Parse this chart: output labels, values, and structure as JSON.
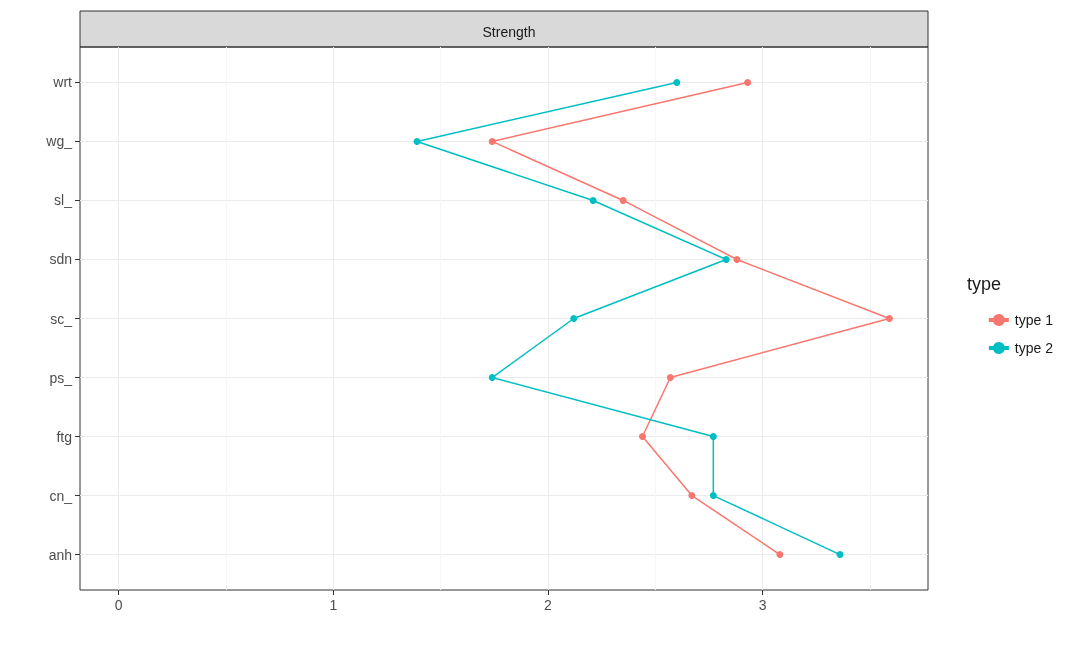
{
  "chart_data": {
    "type": "line",
    "orientation": "horizontal",
    "title": "Strength",
    "legend_title": "type",
    "categories": [
      "wrt",
      "wg_",
      "sl_",
      "sdn",
      "sc_",
      "ps_",
      "ftg",
      "cn_",
      "anh"
    ],
    "series": [
      {
        "name": "type 1",
        "color": "#f8766d",
        "values": [
          2.93,
          1.74,
          2.35,
          2.88,
          3.59,
          2.57,
          2.44,
          2.67,
          3.08
        ]
      },
      {
        "name": "type 2",
        "color": "#00bfc4",
        "values": [
          2.6,
          1.39,
          2.21,
          2.83,
          2.12,
          1.74,
          2.77,
          2.77,
          3.36
        ]
      }
    ],
    "xlim": [
      -0.18,
      3.77
    ],
    "xticks": [
      0,
      1,
      2,
      3
    ],
    "grid": true,
    "legend": "right",
    "marker": "circle",
    "line_style": "solid"
  }
}
